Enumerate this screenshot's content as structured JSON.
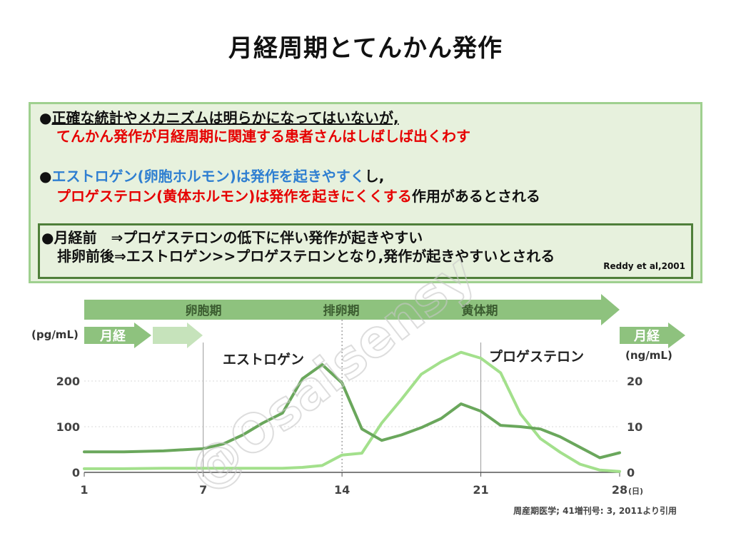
{
  "title": "月経周期とてんかん発作",
  "box": {
    "l1_bullet": "●",
    "l1_under": "正確な統計やメカニズムは明らかになってはいないが,",
    "l2_red": "てんかん発作が月経周期に関連する患者さんはしばしば出くわす",
    "l3_bullet": "●",
    "l3_blue": "エストロゲン(卵胞ホルモン)は発作を起きやすく",
    "l3_tail": "し,",
    "l4_red": "プロゲステロン(黄体ホルモン)は発作を起きにくくする",
    "l4_tail": "作用があるとされる",
    "inner_l1": "●月経前　⇒プロゲステロンの低下に伴い発作が起きやすい",
    "inner_l2": "排卵前後⇒エストロゲン>>プロゲステロンとなり,発作が起きやすいとされる",
    "reference": "Reddy et al,2001"
  },
  "watermark": "@Osaisensy",
  "chart_data": {
    "type": "line",
    "phase_labels": [
      "卵胞期",
      "排卵期",
      "黄体期"
    ],
    "menses_label": "月経",
    "left_unit": "(pg/mL)",
    "right_unit": "(ng/mL)",
    "x_unit": "(日)",
    "x_ticks": [
      1,
      7,
      14,
      21,
      28
    ],
    "y_left_ticks": [
      0,
      100,
      200
    ],
    "y_right_ticks": [
      0,
      10,
      20
    ],
    "xlim": [
      1,
      28
    ],
    "ylim_left": [
      0,
      300
    ],
    "ylim_right": [
      0,
      30
    ],
    "series": [
      {
        "name": "エストロゲン",
        "axis": "left",
        "color": "#6aa75c",
        "x": [
          1,
          3,
          5,
          7,
          8,
          9,
          10,
          11,
          12,
          13,
          14,
          15,
          16,
          17,
          18,
          19,
          20,
          21,
          22,
          23,
          24,
          25,
          26,
          27,
          28
        ],
        "y": [
          45,
          45,
          47,
          52,
          62,
          82,
          108,
          130,
          205,
          236,
          196,
          95,
          70,
          82,
          98,
          118,
          150,
          134,
          103,
          100,
          95,
          78,
          55,
          32,
          43
        ]
      },
      {
        "name": "プロゲステロン",
        "axis": "right",
        "color": "#a3e08c",
        "x": [
          1,
          3,
          5,
          7,
          9,
          11,
          12,
          13,
          14,
          15,
          16,
          17,
          18,
          19,
          20,
          21,
          22,
          23,
          24,
          25,
          26,
          27,
          28
        ],
        "y": [
          0.8,
          0.8,
          0.9,
          0.9,
          0.9,
          0.9,
          1.1,
          1.5,
          3.8,
          4.2,
          10.8,
          16,
          21.5,
          24.2,
          26.3,
          25,
          21.8,
          12.8,
          7.4,
          4.4,
          1.8,
          0.5,
          0.2
        ]
      }
    ]
  },
  "citation": "周産期医学; 41増刊号: 3, 2011より引用"
}
